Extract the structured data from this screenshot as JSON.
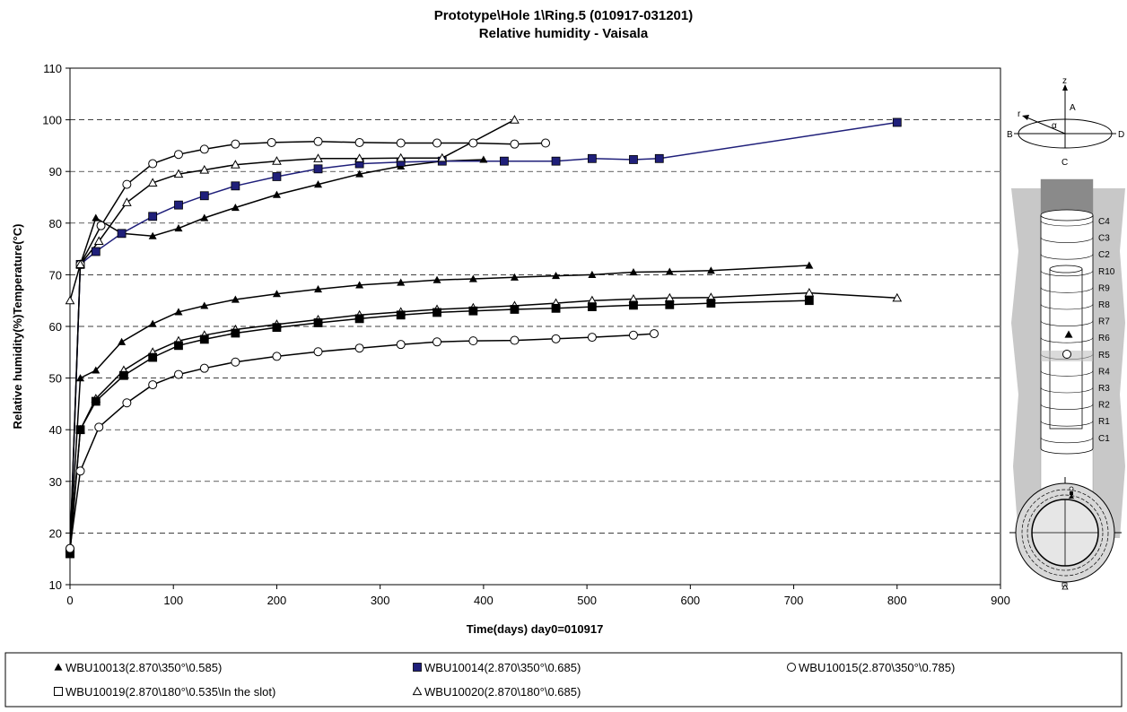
{
  "chart_data": {
    "type": "line",
    "title": "Prototype\\Hole 1\\Ring.5    (010917-031201)",
    "subtitle": "Relative humidity - Vaisala",
    "xlabel": "Time(days) day0=010917",
    "ylabel": "Relative humidity(%)Temperature(°C)",
    "xlim": [
      0,
      900
    ],
    "ylim": [
      10,
      110
    ],
    "x_ticks": [
      0,
      100,
      200,
      300,
      400,
      500,
      600,
      700,
      800,
      900
    ],
    "y_ticks": [
      10,
      20,
      30,
      40,
      50,
      60,
      70,
      80,
      90,
      100,
      110
    ],
    "grid": "horizontal dashed",
    "legend_position": "bottom",
    "series": [
      {
        "name": "WBU10013(2.870\\350°\\0.585)",
        "marker": "filled-triangle",
        "color": "#000000",
        "x": [
          0,
          10,
          25,
          50,
          80,
          105,
          130,
          160,
          200,
          240,
          280,
          320,
          360,
          400
        ],
        "y": [
          16,
          72,
          81,
          78,
          77.5,
          79,
          81,
          83,
          85.5,
          87.5,
          89.5,
          91,
          92,
          92.3
        ]
      },
      {
        "name": "WBU10014(2.870\\350°\\0.685)",
        "marker": "filled-square",
        "color": "#1f1f7a",
        "x": [
          0,
          10,
          25,
          50,
          80,
          105,
          130,
          160,
          200,
          240,
          280,
          320,
          360,
          420,
          470,
          505,
          545,
          570,
          800
        ],
        "y": [
          16,
          72,
          74.5,
          78,
          81.3,
          83.5,
          85.3,
          87.2,
          89,
          90.5,
          91.5,
          91.8,
          92,
          92,
          92,
          92.5,
          92.3,
          92.5,
          99.5
        ]
      },
      {
        "name": "WBU10015(2.870\\350°\\0.785)",
        "marker": "hollow-circle",
        "color": "#000000",
        "x": [
          0,
          10,
          30,
          55,
          80,
          105,
          130,
          160,
          195,
          240,
          280,
          320,
          355,
          390,
          430,
          460
        ],
        "y": [
          17,
          72,
          79.5,
          87.5,
          91.5,
          93.3,
          94.3,
          95.3,
          95.6,
          95.8,
          95.6,
          95.5,
          95.5,
          95.5,
          95.3,
          95.5
        ]
      },
      {
        "name": "WBU10019(2.870\\180°\\0.535\\In the slot)",
        "marker": "hollow-square",
        "color": "#000000",
        "x": [],
        "y": []
      },
      {
        "name": "WBU10020(2.870\\180°\\0.685)",
        "marker": "hollow-triangle",
        "color": "#000000",
        "x": [
          0,
          10,
          28,
          55,
          80,
          105,
          130,
          160,
          200,
          240,
          280,
          320,
          360,
          430
        ],
        "y": [
          65,
          72,
          76.5,
          84,
          87.8,
          89.5,
          90.3,
          91.3,
          92,
          92.5,
          92.5,
          92.6,
          92.6,
          100
        ]
      },
      {
        "name": "",
        "marker": "filled-triangle",
        "color": "#000000",
        "x": [
          0,
          10,
          25,
          50,
          80,
          105,
          130,
          160,
          200,
          240,
          280,
          320,
          355,
          390,
          430,
          470,
          505,
          545,
          580,
          620,
          715
        ],
        "y": [
          17,
          50,
          51.5,
          57,
          60.5,
          62.8,
          64,
          65.2,
          66.3,
          67.2,
          68,
          68.5,
          69,
          69.2,
          69.5,
          69.8,
          70,
          70.5,
          70.6,
          70.8,
          71.8
        ]
      },
      {
        "name": "",
        "marker": "hollow-triangle",
        "color": "#000000",
        "x": [
          0,
          10,
          25,
          52,
          80,
          105,
          130,
          160,
          200,
          240,
          280,
          320,
          355,
          390,
          430,
          470,
          505,
          545,
          580,
          620,
          715,
          800
        ],
        "y": [
          17,
          40,
          46,
          51.5,
          55,
          57.2,
          58.3,
          59.4,
          60.4,
          61.3,
          62.2,
          62.8,
          63.3,
          63.6,
          64,
          64.5,
          65,
          65.3,
          65.5,
          65.6,
          66.5,
          65.5
        ]
      },
      {
        "name": "",
        "marker": "filled-square",
        "color": "#000000",
        "x": [
          0,
          10,
          25,
          52,
          80,
          105,
          130,
          160,
          200,
          240,
          280,
          320,
          355,
          390,
          430,
          470,
          505,
          545,
          580,
          620,
          715
        ],
        "y": [
          16,
          40,
          45.5,
          50.5,
          54,
          56.3,
          57.5,
          58.7,
          59.8,
          60.7,
          61.5,
          62.2,
          62.7,
          63,
          63.3,
          63.5,
          63.8,
          64.1,
          64.2,
          64.5,
          65
        ]
      },
      {
        "name": "",
        "marker": "hollow-circle",
        "color": "#000000",
        "x": [
          0,
          10,
          28,
          55,
          80,
          105,
          130,
          160,
          200,
          240,
          280,
          320,
          355,
          390,
          430,
          470,
          505,
          545,
          565
        ],
        "y": [
          17,
          32,
          40.5,
          45.2,
          48.7,
          50.7,
          51.9,
          53.1,
          54.2,
          55.1,
          55.8,
          56.5,
          57,
          57.2,
          57.3,
          57.6,
          57.9,
          58.3,
          58.6
        ]
      }
    ]
  },
  "diagram": {
    "compass": {
      "z": "z",
      "A": "A",
      "B": "B",
      "C": "C",
      "D": "D",
      "r": "r",
      "alpha": "α"
    },
    "rings": [
      "C4",
      "C3",
      "C2",
      "R10",
      "R9",
      "R8",
      "R7",
      "R6",
      "R5",
      "R4",
      "R3",
      "R2",
      "R1",
      "C1"
    ]
  }
}
